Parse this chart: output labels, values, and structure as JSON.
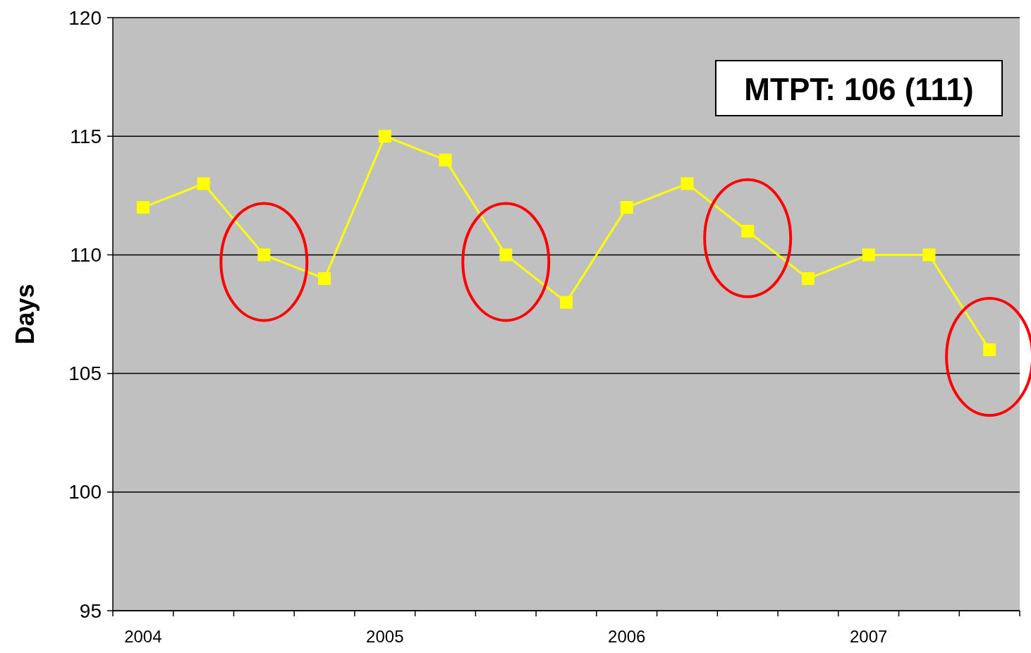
{
  "chart_data": {
    "type": "line",
    "ylabel": "Days",
    "annotations": [
      "MTPT: 106 (111)"
    ],
    "categories": [
      "2004",
      null,
      null,
      null,
      "2005",
      null,
      null,
      null,
      "2006",
      null,
      null,
      null,
      "2007",
      null,
      null
    ],
    "series": [
      {
        "color": "#ffff00",
        "values": [
          112,
          113,
          110,
          109,
          115,
          114,
          110,
          108,
          112,
          113,
          111,
          109,
          110,
          110,
          106
        ]
      }
    ],
    "ylim": [
      95,
      120
    ],
    "yticks": [
      95,
      100,
      105,
      110,
      115,
      120
    ],
    "grid": "y",
    "marker": "square",
    "line_style": "solid"
  }
}
